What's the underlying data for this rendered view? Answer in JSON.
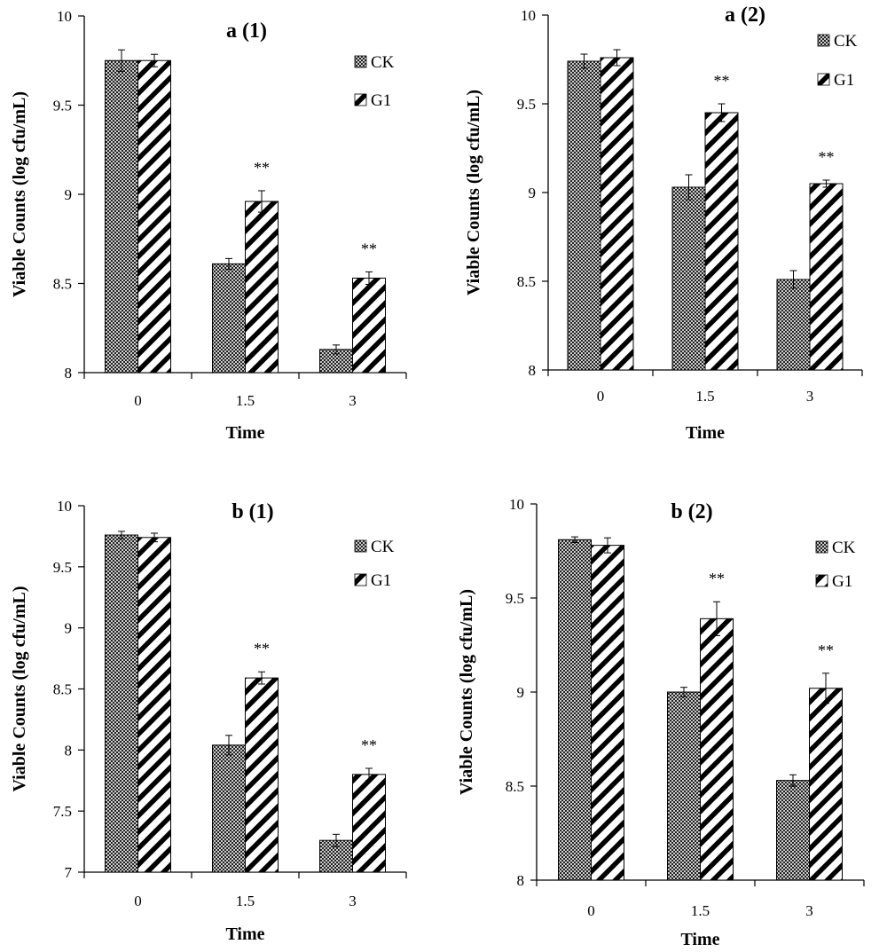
{
  "colors": {
    "axis": "#000000",
    "background": "#ffffff",
    "bar_fill": "#ffffff",
    "pattern": "#000000"
  },
  "chart_data": [
    {
      "type": "bar",
      "title": "a (1)",
      "xlabel": "Time",
      "ylabel": "Viable Counts (log  cfu/mL)",
      "categories": [
        "0",
        "1.5",
        "3"
      ],
      "ylim": [
        8,
        10
      ],
      "yticks": [
        "8",
        "8.5",
        "9",
        "9.5",
        "10"
      ],
      "legend_position": "top-right",
      "series": [
        {
          "name": "CK",
          "pattern": "crosshatch",
          "values": [
            9.75,
            8.61,
            8.13
          ],
          "errors": [
            0.06,
            0.03,
            0.025
          ]
        },
        {
          "name": "G1",
          "pattern": "diagonal",
          "values": [
            9.75,
            8.96,
            8.53
          ],
          "errors": [
            0.035,
            0.06,
            0.035
          ]
        }
      ],
      "annotations": [
        "",
        "**",
        "**"
      ]
    },
    {
      "type": "bar",
      "title": "a (2)",
      "xlabel": "Time",
      "ylabel": "Viable Counts (log  cfu/mL)",
      "categories": [
        "0",
        "1.5",
        "3"
      ],
      "ylim": [
        8,
        10
      ],
      "yticks": [
        "8",
        "8.5",
        "9",
        "9.5",
        "10"
      ],
      "legend_position": "top-right",
      "series": [
        {
          "name": "CK",
          "pattern": "crosshatch",
          "values": [
            9.74,
            9.03,
            8.51
          ],
          "errors": [
            0.04,
            0.07,
            0.05
          ]
        },
        {
          "name": "G1",
          "pattern": "diagonal",
          "values": [
            9.76,
            9.45,
            9.05
          ],
          "errors": [
            0.045,
            0.05,
            0.02
          ]
        }
      ],
      "annotations": [
        "",
        "**",
        "**"
      ]
    },
    {
      "type": "bar",
      "title": "b (1)",
      "xlabel": "Time",
      "ylabel": "Viable Counts (log  cfu/mL)",
      "categories": [
        "0",
        "1.5",
        "3"
      ],
      "ylim": [
        7,
        10
      ],
      "yticks": [
        "7",
        "7.5",
        "8",
        "8.5",
        "9",
        "9.5",
        "10"
      ],
      "legend_position": "top-right",
      "series": [
        {
          "name": "CK",
          "pattern": "crosshatch",
          "values": [
            9.76,
            8.04,
            7.26
          ],
          "errors": [
            0.03,
            0.08,
            0.05
          ]
        },
        {
          "name": "G1",
          "pattern": "diagonal",
          "values": [
            9.74,
            8.59,
            7.8
          ],
          "errors": [
            0.035,
            0.05,
            0.05
          ]
        }
      ],
      "annotations": [
        "",
        "**",
        "**"
      ]
    },
    {
      "type": "bar",
      "title": "b (2)",
      "xlabel": "Time",
      "ylabel": "Viable Counts (log  cfu/mL)",
      "categories": [
        "0",
        "1.5",
        "3"
      ],
      "ylim": [
        8,
        10
      ],
      "yticks": [
        "8",
        "8.5",
        "9",
        "9.5",
        "10"
      ],
      "legend_position": "top-right",
      "series": [
        {
          "name": "CK",
          "pattern": "crosshatch",
          "values": [
            9.81,
            9.0,
            8.53
          ],
          "errors": [
            0.015,
            0.025,
            0.03
          ]
        },
        {
          "name": "G1",
          "pattern": "diagonal",
          "values": [
            9.78,
            9.39,
            9.02
          ],
          "errors": [
            0.04,
            0.09,
            0.08
          ]
        }
      ],
      "annotations": [
        "",
        "**",
        "**"
      ]
    }
  ]
}
